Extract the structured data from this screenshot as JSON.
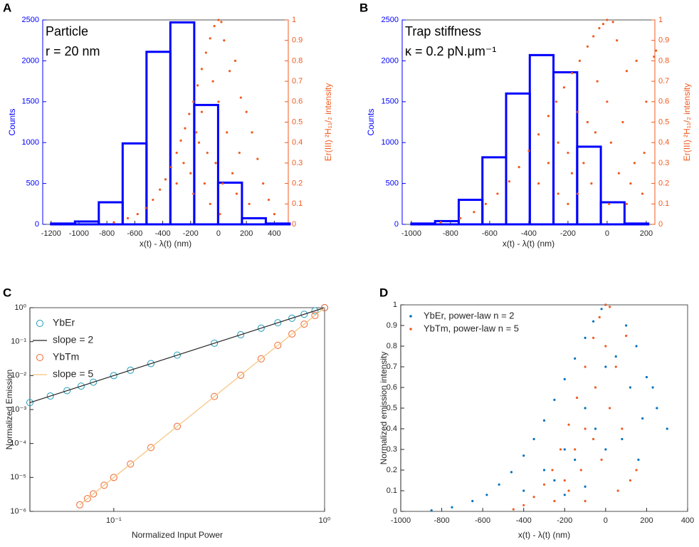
{
  "chart_data": [
    {
      "type": "histogram",
      "panel": "A",
      "xlabel": "x(t) - λ(t) (nm)",
      "ylabel": "Counts",
      "y2label": "Er(III) ²H₁₁/₂ intensity",
      "annotations": [
        "Particle",
        "r = 20 nm"
      ],
      "color": "#0000ff",
      "bins": [
        -1200,
        -1029,
        -858,
        -687,
        -516,
        -345,
        -174,
        -3,
        168,
        339,
        510
      ],
      "counts": [
        10,
        35,
        270,
        990,
        2110,
        2470,
        1460,
        510,
        75,
        10
      ],
      "xlim": [
        -1260,
        500
      ],
      "xticks": [
        -1200,
        -1000,
        -800,
        -600,
        -400,
        -200,
        0,
        200,
        400
      ],
      "ylim": [
        0,
        2500
      ],
      "yticks": [
        0,
        500,
        1000,
        1500,
        2000,
        2500
      ],
      "y2lim": [
        0,
        1
      ],
      "y2ticks": [
        0,
        0.1,
        0.2,
        0.3,
        0.4,
        0.5,
        0.6,
        0.7,
        0.8,
        0.9,
        1
      ],
      "series": [
        {
          "color": "#f05a1e",
          "axis": "y2",
          "style": "dots",
          "x": [
            -750,
            -650,
            -580,
            -520,
            -470,
            -420,
            -380,
            -340,
            -300,
            -270,
            -240,
            -210,
            -180,
            -150,
            -120,
            -90,
            -60,
            -30,
            0,
            20,
            -300,
            -250,
            -200,
            -160,
            -120,
            -80,
            -40,
            0,
            40,
            80,
            120,
            160,
            200,
            240,
            280,
            320,
            360,
            400,
            -180,
            -100,
            -20,
            60,
            100,
            150,
            -140,
            -60,
            30,
            130,
            220,
            10
          ],
          "values": [
            0.01,
            0.03,
            0.05,
            0.08,
            0.12,
            0.17,
            0.22,
            0.28,
            0.35,
            0.41,
            0.47,
            0.54,
            0.6,
            0.68,
            0.76,
            0.84,
            0.91,
            0.97,
            1.0,
            0.99,
            0.2,
            0.3,
            0.25,
            0.45,
            0.55,
            0.35,
            0.7,
            0.6,
            0.9,
            0.75,
            0.8,
            0.62,
            0.55,
            0.45,
            0.32,
            0.2,
            0.12,
            0.05,
            0.15,
            0.2,
            0.3,
            0.45,
            0.25,
            0.35,
            0.4,
            0.1,
            0.2,
            0.15,
            0.1,
            0.05
          ]
        }
      ]
    },
    {
      "type": "histogram",
      "panel": "B",
      "xlabel": "x(t) - λ(t) (nm)",
      "ylabel": "Counts",
      "y2label": "Er(III) ²H₁₁/₂ intensity",
      "annotations": [
        "Trap stiffness",
        "κ = 0.2 pN.μm⁻¹"
      ],
      "color": "#0000ff",
      "bins": [
        -1000,
        -879,
        -758,
        -637,
        -516,
        -395,
        -274,
        -153,
        -32,
        89,
        210
      ],
      "counts": [
        10,
        40,
        300,
        820,
        1600,
        2070,
        1860,
        950,
        270,
        10
      ],
      "xlim": [
        -1047,
        244
      ],
      "xticks": [
        -1000,
        -800,
        -600,
        -400,
        -200,
        0,
        200
      ],
      "ylim": [
        0,
        2500
      ],
      "yticks": [
        0,
        500,
        1000,
        1500,
        2000,
        2500
      ],
      "y2lim": [
        0,
        1
      ],
      "y2ticks": [
        0,
        0.1,
        0.2,
        0.3,
        0.4,
        0.5,
        0.6,
        0.7,
        0.8,
        0.9,
        1
      ],
      "series": [
        {
          "color": "#f05a1e",
          "axis": "y2",
          "style": "dots",
          "x": [
            -850,
            -750,
            -680,
            -620,
            -560,
            -500,
            -450,
            -400,
            -350,
            -300,
            -260,
            -220,
            -180,
            -140,
            -100,
            -70,
            -40,
            -20,
            0,
            30,
            -350,
            -300,
            -250,
            -200,
            -150,
            -100,
            -50,
            0,
            50,
            100,
            150,
            200,
            250,
            -250,
            -180,
            -120,
            -60,
            20,
            80,
            140,
            190,
            -200,
            -80,
            60,
            120,
            240,
            -150,
            10,
            100,
            180
          ],
          "values": [
            0.01,
            0.03,
            0.06,
            0.1,
            0.15,
            0.21,
            0.28,
            0.36,
            0.44,
            0.53,
            0.6,
            0.67,
            0.74,
            0.8,
            0.87,
            0.92,
            0.96,
            0.98,
            1.0,
            0.99,
            0.2,
            0.3,
            0.4,
            0.35,
            0.55,
            0.5,
            0.7,
            0.6,
            0.9,
            0.75,
            0.8,
            0.6,
            0.85,
            0.15,
            0.25,
            0.3,
            0.45,
            0.4,
            0.5,
            0.3,
            0.35,
            0.1,
            0.2,
            0.25,
            0.2,
            0.82,
            0.15,
            0.1,
            0.1,
            0.15
          ]
        }
      ]
    },
    {
      "type": "scatter",
      "panel": "C",
      "xlabel": "Normalized Input Power",
      "ylabel": "Normalized Emission",
      "xscale": "log",
      "yscale": "log",
      "legend": "upper left",
      "xlim": [
        0.04,
        1
      ],
      "xticks": [
        {
          "value": 0.1,
          "label": "10⁻¹"
        },
        {
          "value": 1,
          "label": "10⁰"
        }
      ],
      "ylim": [
        1e-06,
        1
      ],
      "yticks": [
        {
          "value": 1e-06,
          "label": "10⁻⁶"
        },
        {
          "value": 1e-05,
          "label": "10⁻⁵"
        },
        {
          "value": 0.0001,
          "label": "10⁻⁴"
        },
        {
          "value": 0.001,
          "label": "10⁻³"
        },
        {
          "value": 0.01,
          "label": "10⁻²"
        },
        {
          "value": 0.1,
          "label": "10⁻¹"
        },
        {
          "value": 1,
          "label": "10⁰"
        }
      ],
      "series": [
        {
          "name": "YbEr",
          "color": "#1d9bb8",
          "style": "circles",
          "x": [
            0.04,
            0.05,
            0.06,
            0.07,
            0.08,
            0.1,
            0.12,
            0.15,
            0.2,
            0.3,
            0.4,
            0.5,
            0.6,
            0.7,
            0.8,
            0.9,
            1
          ],
          "values": [
            0.0016,
            0.0025,
            0.0036,
            0.0049,
            0.0064,
            0.01,
            0.0144,
            0.0225,
            0.04,
            0.09,
            0.16,
            0.25,
            0.36,
            0.49,
            0.64,
            0.81,
            1
          ]
        },
        {
          "name": "slope = 2",
          "color": "#262626",
          "style": "line",
          "x": [
            0.04,
            1
          ],
          "values": [
            0.0016,
            1
          ]
        },
        {
          "name": "YbTm",
          "color": "#f26430",
          "style": "circles",
          "x": [
            0.069,
            0.075,
            0.08,
            0.09,
            0.1,
            0.12,
            0.15,
            0.2,
            0.3,
            0.4,
            0.5,
            0.6,
            0.7,
            0.8,
            0.9,
            1
          ],
          "values": [
            1.56e-06,
            2.37e-06,
            3.28e-06,
            5.9e-06,
            1e-05,
            2.49e-05,
            7.59e-05,
            0.00032,
            0.00243,
            0.01024,
            0.03125,
            0.07776,
            0.16807,
            0.32768,
            0.59049,
            1
          ]
        },
        {
          "name": "slope = 5",
          "color": "#f5c27a",
          "style": "line",
          "x": [
            0.069,
            1
          ],
          "values": [
            1.56e-06,
            1
          ]
        }
      ]
    },
    {
      "type": "scatter",
      "panel": "D",
      "xlabel": "x(t) - λ(t) (nm)",
      "ylabel": "Normalized emission intensity",
      "legend": "upper left",
      "xlim": [
        -1000,
        400
      ],
      "xticks": [
        -1000,
        -800,
        -600,
        -400,
        -200,
        0,
        200,
        400
      ],
      "ylim": [
        0,
        1
      ],
      "yticks": [
        0,
        0.1,
        0.2,
        0.3,
        0.4,
        0.5,
        0.6,
        0.7,
        0.8,
        0.9,
        1
      ],
      "series": [
        {
          "name": "YbEr, power-law n = 2",
          "color": "#0072bd",
          "style": "dots",
          "x": [
            -850,
            -750,
            -650,
            -580,
            -520,
            -460,
            -400,
            -350,
            -300,
            -250,
            -200,
            -150,
            -100,
            -60,
            -20,
            0,
            -400,
            -300,
            -200,
            -100,
            0,
            100,
            150,
            200,
            250,
            300,
            -250,
            -150,
            -50,
            50,
            120,
            180,
            230,
            -200,
            -100,
            0,
            80,
            160
          ],
          "values": [
            0.005,
            0.02,
            0.05,
            0.08,
            0.13,
            0.19,
            0.27,
            0.35,
            0.44,
            0.54,
            0.64,
            0.74,
            0.84,
            0.92,
            0.98,
            1.0,
            0.1,
            0.2,
            0.3,
            0.5,
            0.7,
            0.9,
            0.8,
            0.65,
            0.5,
            0.4,
            0.15,
            0.25,
            0.4,
            0.75,
            0.6,
            0.45,
            0.6,
            0.08,
            0.12,
            0.3,
            0.35,
            0.25
          ]
        },
        {
          "name": "YbTm, power-law n = 5",
          "color": "#f05a22",
          "style": "dots",
          "x": [
            -450,
            -400,
            -350,
            -300,
            -260,
            -220,
            -180,
            -140,
            -100,
            -60,
            -30,
            0,
            20,
            -250,
            -200,
            -150,
            -100,
            -50,
            0,
            50,
            100,
            150,
            -180,
            -120,
            -60,
            20,
            80,
            120,
            -100,
            -20,
            60
          ],
          "values": [
            0.01,
            0.03,
            0.07,
            0.13,
            0.2,
            0.3,
            0.42,
            0.55,
            0.7,
            0.84,
            0.94,
            1.0,
            0.99,
            0.05,
            0.15,
            0.3,
            0.4,
            0.6,
            0.8,
            0.7,
            0.85,
            0.2,
            0.1,
            0.2,
            0.35,
            0.5,
            0.4,
            0.15,
            0.05,
            0.25,
            0.1
          ]
        }
      ]
    }
  ]
}
